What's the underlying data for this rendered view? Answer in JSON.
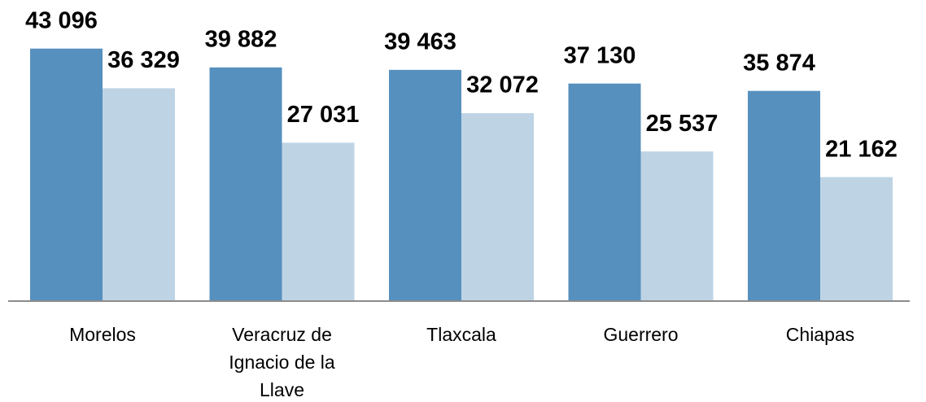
{
  "chart_data": {
    "type": "bar",
    "categories": [
      "Morelos",
      "Veracruz de Ignacio de la Llave",
      "Tlaxcala",
      "Guerrero",
      "Chiapas"
    ],
    "series": [
      {
        "color": "#5690be",
        "values": [
          43096,
          39882,
          39463,
          37130,
          35874
        ],
        "value_labels": [
          "43 096",
          "39 882",
          "39 463",
          "37 130",
          "35 874"
        ]
      },
      {
        "color": "#bed4e5",
        "values": [
          36329,
          27031,
          32072,
          25537,
          21162
        ],
        "value_labels": [
          "36 329",
          "27 031",
          "32 072",
          "25 537",
          "21 162"
        ]
      }
    ],
    "ylim": [
      0,
      50000
    ]
  }
}
